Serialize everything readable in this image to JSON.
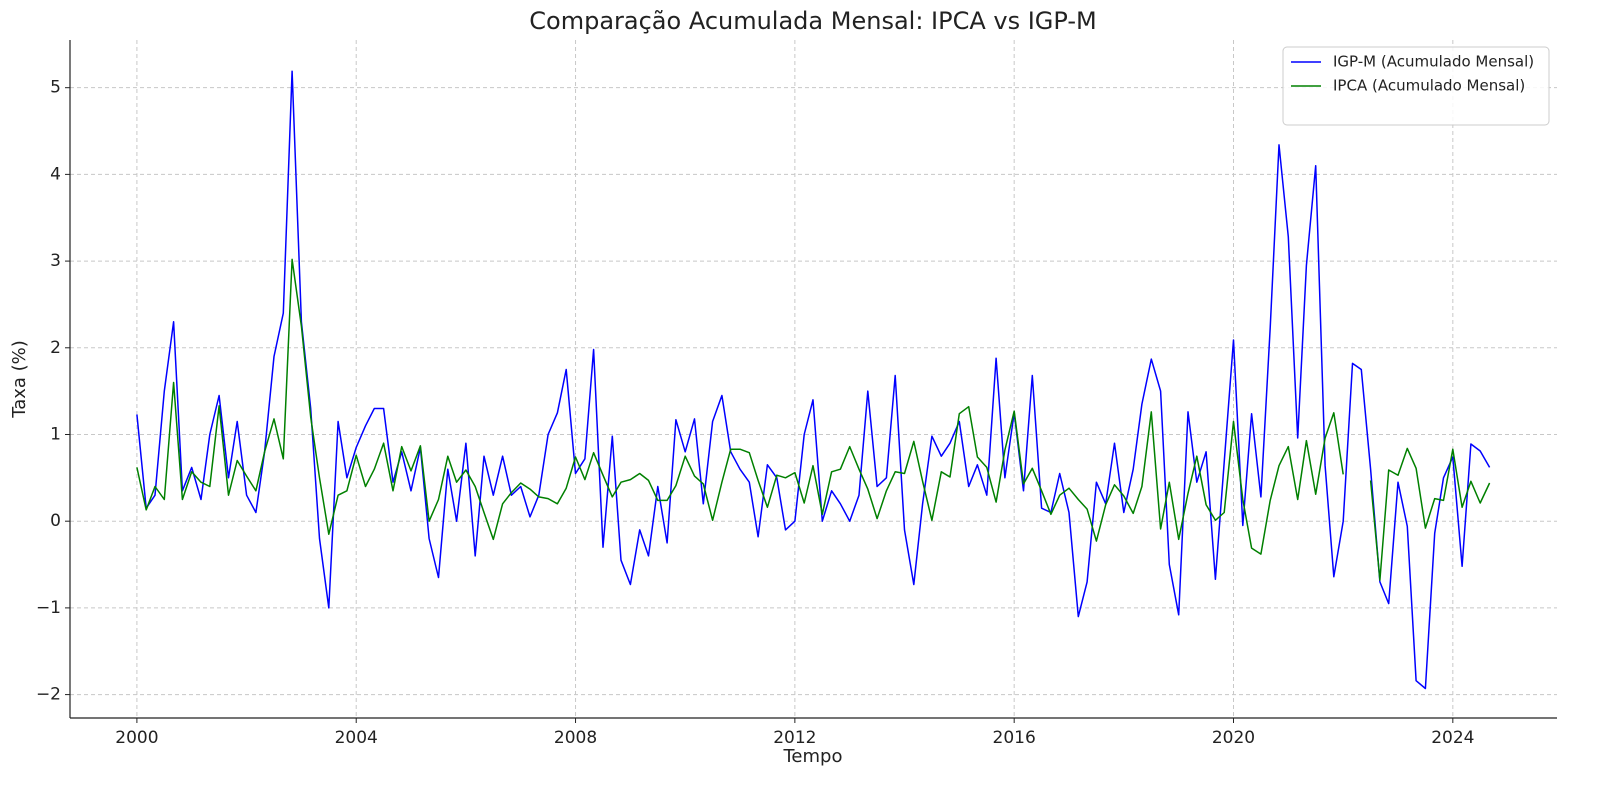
{
  "chart_data": {
    "type": "line",
    "title": "Comparação Acumulada Mensal: IPCA vs IGP-M",
    "x_label": "Tempo",
    "y_label": "Taxa (%)",
    "xlim": [
      1998.78,
      2025.9
    ],
    "ylim": [
      -2.27,
      5.55
    ],
    "xticks": [
      2000,
      2004,
      2008,
      2012,
      2016,
      2020,
      2024
    ],
    "yticks": [
      {
        "value": -2,
        "label": "−2"
      },
      {
        "value": -1,
        "label": "−1"
      },
      0,
      1,
      2,
      3,
      4,
      5
    ],
    "grid": true,
    "legend": "upper right",
    "x": [
      2000,
      2000.17,
      2000.33,
      2000.5,
      2000.67,
      2000.83,
      2001,
      2001.17,
      2001.33,
      2001.5,
      2001.67,
      2001.83,
      2002,
      2002.17,
      2002.33,
      2002.5,
      2002.67,
      2002.83,
      2003,
      2003.17,
      2003.33,
      2003.5,
      2003.67,
      2003.83,
      2004,
      2004.17,
      2004.33,
      2004.5,
      2004.67,
      2004.83,
      2005,
      2005.17,
      2005.33,
      2005.5,
      2005.67,
      2005.83,
      2006,
      2006.17,
      2006.33,
      2006.5,
      2006.67,
      2006.83,
      2007,
      2007.17,
      2007.33,
      2007.5,
      2007.67,
      2007.83,
      2008,
      2008.17,
      2008.33,
      2008.5,
      2008.67,
      2008.83,
      2009,
      2009.17,
      2009.33,
      2009.5,
      2009.67,
      2009.83,
      2010,
      2010.17,
      2010.33,
      2010.5,
      2010.67,
      2010.83,
      2011,
      2011.17,
      2011.33,
      2011.5,
      2011.67,
      2011.83,
      2012,
      2012.17,
      2012.33,
      2012.5,
      2012.67,
      2012.83,
      2013,
      2013.17,
      2013.33,
      2013.5,
      2013.67,
      2013.83,
      2014,
      2014.17,
      2014.33,
      2014.5,
      2014.67,
      2014.83,
      2015,
      2015.17,
      2015.33,
      2015.5,
      2015.67,
      2015.83,
      2016,
      2016.17,
      2016.33,
      2016.5,
      2016.67,
      2016.83,
      2017,
      2017.17,
      2017.33,
      2017.5,
      2017.67,
      2017.83,
      2018,
      2018.17,
      2018.33,
      2018.5,
      2018.67,
      2018.83,
      2019,
      2019.17,
      2019.33,
      2019.5,
      2019.67,
      2019.83,
      2020,
      2020.17,
      2020.33,
      2020.5,
      2020.67,
      2020.83,
      2021,
      2021.17,
      2021.33,
      2021.5,
      2021.67,
      2021.83,
      2022,
      2022.17,
      2022.33,
      2022.5,
      2022.67,
      2022.83,
      2023,
      2023.17,
      2023.33,
      2023.5,
      2023.67,
      2023.83,
      2024,
      2024.17,
      2024.33,
      2024.5,
      2024.67
    ],
    "series": [
      {
        "name": "IGP-M (Acumulado Mensal)",
        "color": "#0000ff",
        "values": [
          1.23,
          0.15,
          0.3,
          1.5,
          2.3,
          0.35,
          0.62,
          0.25,
          1.0,
          1.45,
          0.5,
          1.15,
          0.3,
          0.1,
          0.8,
          1.9,
          2.4,
          5.19,
          2.3,
          1.3,
          -0.2,
          -1.0,
          1.15,
          0.5,
          0.85,
          1.1,
          1.3,
          1.3,
          0.45,
          0.8,
          0.35,
          0.85,
          -0.2,
          -0.65,
          0.6,
          0.0,
          0.9,
          -0.4,
          0.75,
          0.3,
          0.75,
          0.3,
          0.4,
          0.05,
          0.3,
          1.0,
          1.25,
          1.75,
          0.55,
          0.72,
          1.98,
          -0.3,
          0.98,
          -0.45,
          -0.73,
          -0.1,
          -0.4,
          0.4,
          -0.25,
          1.17,
          0.8,
          1.18,
          0.2,
          1.15,
          1.45,
          0.8,
          0.6,
          0.45,
          -0.18,
          0.65,
          0.5,
          -0.1,
          0.0,
          1.0,
          1.4,
          0.0,
          0.35,
          0.2,
          0.0,
          0.3,
          1.5,
          0.4,
          0.5,
          1.68,
          -0.1,
          -0.73,
          0.2,
          0.98,
          0.75,
          0.9,
          1.15,
          0.4,
          0.65,
          0.3,
          1.88,
          0.5,
          1.25,
          0.35,
          1.68,
          0.15,
          0.1,
          0.55,
          0.1,
          -1.1,
          -0.7,
          0.45,
          0.2,
          0.9,
          0.1,
          0.6,
          1.35,
          1.87,
          1.5,
          -0.5,
          -1.08,
          1.26,
          0.45,
          0.8,
          -0.67,
          0.68,
          2.09,
          -0.05,
          1.24,
          0.28,
          2.23,
          4.34,
          3.28,
          0.96,
          2.95,
          4.1,
          0.64,
          -0.64,
          0.0,
          1.82,
          1.75,
          0.6,
          -0.7,
          -0.95,
          0.45,
          -0.06,
          -1.84,
          -1.93,
          -0.14,
          0.5,
          0.74,
          -0.52,
          0.89,
          0.81,
          0.62
        ]
      },
      {
        "name": "IPCA (Acumulado Mensal)",
        "color": "#008000",
        "values": [
          0.62,
          0.13,
          0.4,
          0.25,
          1.6,
          0.25,
          0.57,
          0.45,
          0.4,
          1.33,
          0.3,
          0.7,
          0.52,
          0.35,
          0.8,
          1.18,
          0.72,
          3.02,
          2.25,
          1.2,
          0.5,
          -0.15,
          0.3,
          0.35,
          0.76,
          0.4,
          0.6,
          0.9,
          0.35,
          0.86,
          0.58,
          0.87,
          0.0,
          0.25,
          0.75,
          0.45,
          0.59,
          0.4,
          0.1,
          -0.21,
          0.2,
          0.33,
          0.44,
          0.37,
          0.28,
          0.26,
          0.2,
          0.38,
          0.74,
          0.48,
          0.79,
          0.53,
          0.28,
          0.45,
          0.48,
          0.55,
          0.47,
          0.24,
          0.24,
          0.41,
          0.75,
          0.52,
          0.43,
          0.01,
          0.45,
          0.83,
          0.83,
          0.79,
          0.47,
          0.16,
          0.53,
          0.5,
          0.56,
          0.21,
          0.64,
          0.08,
          0.57,
          0.6,
          0.86,
          0.6,
          0.37,
          0.03,
          0.35,
          0.57,
          0.55,
          0.92,
          0.46,
          0.01,
          0.57,
          0.51,
          1.24,
          1.32,
          0.74,
          0.62,
          0.22,
          0.82,
          1.27,
          0.43,
          0.61,
          0.35,
          0.08,
          0.3,
          0.38,
          0.25,
          0.14,
          -0.23,
          0.19,
          0.42,
          0.29,
          0.09,
          0.4,
          1.26,
          -0.09,
          0.45,
          -0.21,
          0.32,
          0.75,
          0.19,
          0.01,
          0.1,
          1.15,
          0.25,
          -0.31,
          -0.38,
          0.24,
          0.64,
          0.86,
          0.25,
          0.93,
          0.31,
          0.96,
          1.25,
          0.54,
          null,
          null,
          0.47,
          -0.68,
          0.59,
          0.53,
          0.84,
          0.61,
          -0.08,
          0.26,
          0.24,
          0.83,
          0.16,
          0.46,
          0.21,
          0.44
        ]
      }
    ]
  }
}
